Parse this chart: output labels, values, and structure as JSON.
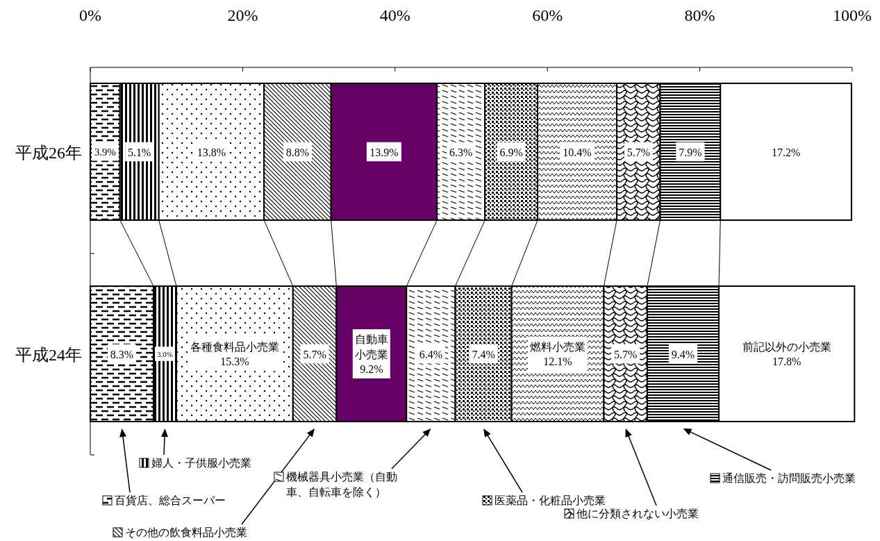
{
  "chart_data": {
    "type": "bar",
    "orientation": "horizontal",
    "stacked": true,
    "legend": "bottom",
    "categories": [
      "平成26年",
      "平成24年"
    ],
    "xlim": [
      0,
      100
    ],
    "xticks": [
      {
        "value": 0,
        "label": "0%"
      },
      {
        "value": 20,
        "label": "20%"
      },
      {
        "value": 40,
        "label": "40%"
      },
      {
        "value": 60,
        "label": "60%"
      },
      {
        "value": 80,
        "label": "80%"
      },
      {
        "value": 100,
        "label": "100%"
      }
    ],
    "series": [
      {
        "name": "百貨店、総合スーパー",
        "color": "#000000",
        "values": [
          3.9,
          8.3
        ],
        "value_labels": [
          "3.9%",
          "8.3%"
        ]
      },
      {
        "name": "婦人・子供服小売業",
        "color": "#000000",
        "values": [
          5.1,
          3.0
        ],
        "value_labels": [
          "5.1%",
          "3.0%"
        ]
      },
      {
        "name": "各種食料品小売業",
        "color": "#000000",
        "values": [
          13.8,
          15.3
        ],
        "value_labels": [
          "13.8%",
          "15.3%"
        ]
      },
      {
        "name": "その他の飲食料品小売業",
        "color": "#000000",
        "values": [
          8.8,
          5.7
        ],
        "value_labels": [
          "8.8%",
          "5.7%"
        ]
      },
      {
        "name": "自動車小売業",
        "color": "#660066",
        "values": [
          13.9,
          9.2
        ],
        "value_labels": [
          "13.9%",
          "9.2%"
        ]
      },
      {
        "name": "機械器具小売業（自動車、自転車を除く）",
        "color": "#000000",
        "values": [
          6.3,
          6.4
        ],
        "value_labels": [
          "6.3%",
          "6.4%"
        ]
      },
      {
        "name": "医薬品・化粧品小売業",
        "color": "#000000",
        "values": [
          6.9,
          7.4
        ],
        "value_labels": [
          "6.9%",
          "7.4%"
        ]
      },
      {
        "name": "燃料小売業",
        "color": "#000000",
        "values": [
          10.4,
          12.1
        ],
        "value_labels": [
          "10.4%",
          "12.1%"
        ]
      },
      {
        "name": "他に分類されない小売業",
        "color": "#000000",
        "values": [
          5.7,
          5.7
        ],
        "value_labels": [
          "5.7%",
          "5.7%"
        ]
      },
      {
        "name": "通信販売・訪問販売小売業",
        "color": "#000000",
        "values": [
          7.9,
          9.4
        ],
        "value_labels": [
          "7.9%",
          "9.4%"
        ]
      },
      {
        "name": "前記以外の小売業",
        "color": "#ffffff",
        "values": [
          17.2,
          17.8
        ],
        "value_labels": [
          "17.2%",
          "17.8%"
        ]
      }
    ]
  }
}
